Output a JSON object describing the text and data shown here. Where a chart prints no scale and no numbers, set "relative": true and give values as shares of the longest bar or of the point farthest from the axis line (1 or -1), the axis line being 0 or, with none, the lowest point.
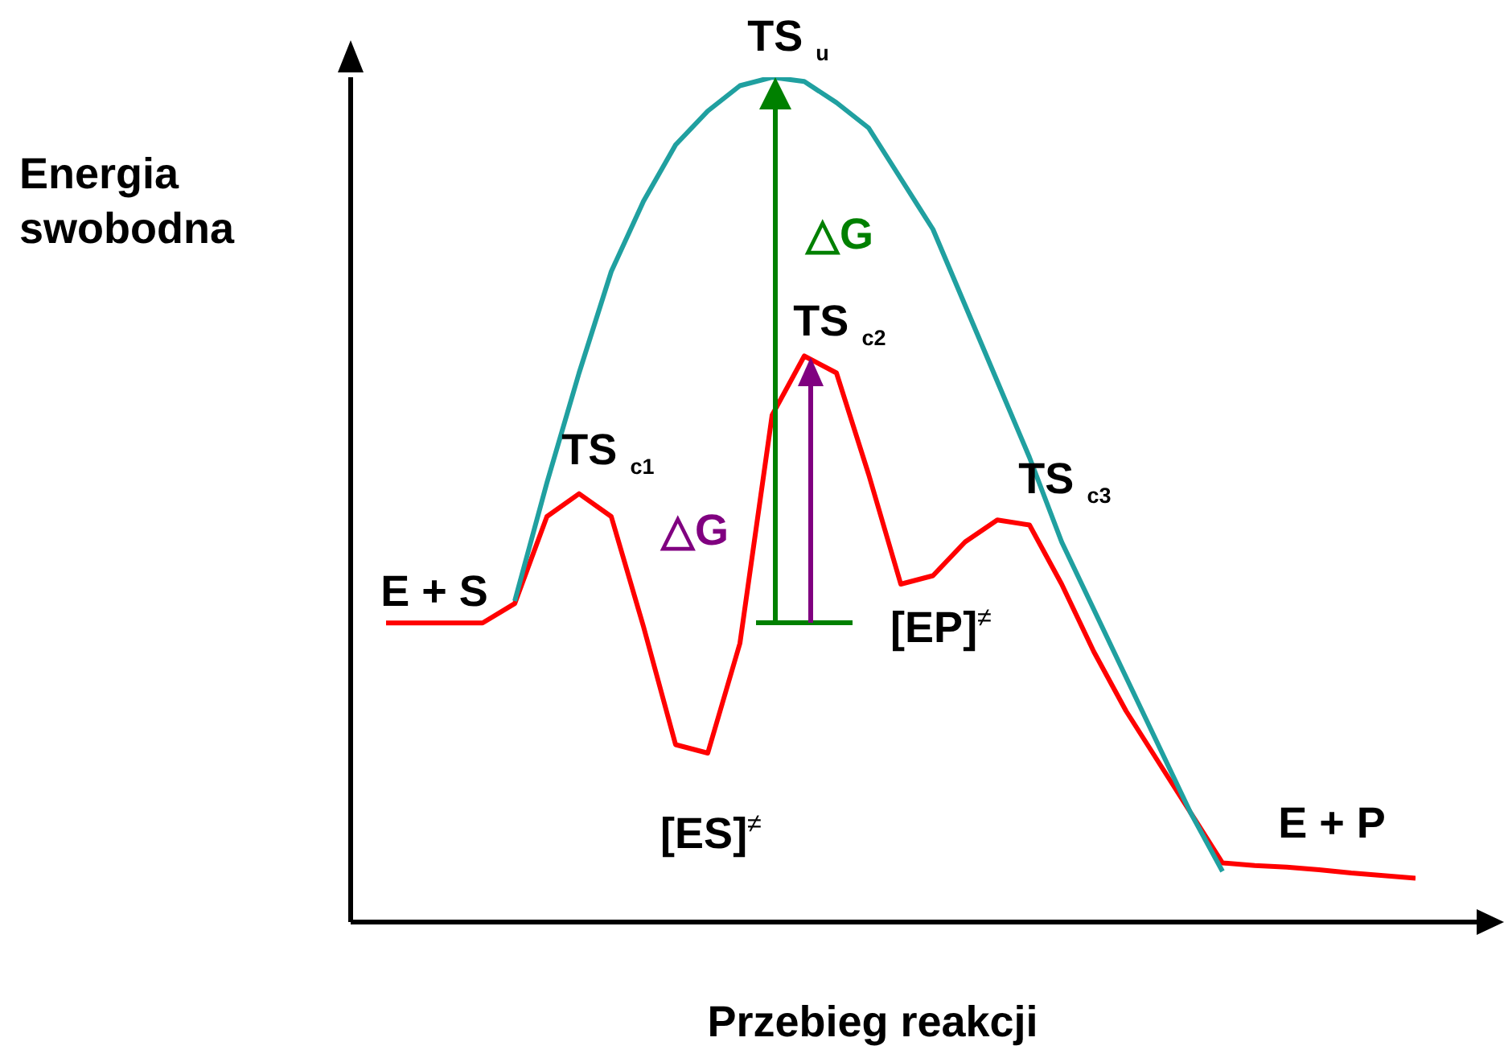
{
  "chart_data": {
    "type": "line",
    "relative": true,
    "xlabel": "Przebieg reakcji",
    "ylabel": "Energia swobodna",
    "grid": false,
    "marker": "none",
    "line_style": "solid",
    "categories": [
      null,
      null,
      null,
      null,
      null,
      null,
      null,
      null,
      null,
      null,
      null,
      null,
      null,
      null,
      null,
      null,
      null,
      null,
      null,
      null,
      null,
      null,
      null,
      null,
      null,
      null,
      null,
      null,
      null,
      null,
      null,
      null,
      null
    ],
    "series": [
      {
        "color": "#ff0000",
        "values": [
          0.354,
          0.354,
          0.354,
          0.354,
          0.377,
          0.48,
          0.507,
          0.48,
          0.35,
          0.21,
          0.2,
          0.33,
          0.6,
          0.67,
          0.65,
          0.53,
          0.4,
          0.41,
          0.45,
          0.476,
          0.47,
          0.4,
          0.32,
          0.25,
          0.19,
          0.13,
          0.07,
          0.067,
          0.065,
          0.062,
          0.058,
          0.055,
          0.052
        ]
      },
      {
        "color": "#20a0a0",
        "values": [
          null,
          null,
          null,
          null,
          0.38,
          0.52,
          0.65,
          0.77,
          0.853,
          0.92,
          0.96,
          0.99,
          1.0,
          0.995,
          0.97,
          0.94,
          0.88,
          0.82,
          0.73,
          0.64,
          0.55,
          0.45,
          0.37,
          0.29,
          0.21,
          0.13,
          0.06,
          null,
          null,
          null,
          null,
          null,
          null
        ]
      }
    ],
    "annotations": [
      "TS$_{u}$",
      "TS$_{c1}$",
      "TS$_{c2}$",
      "TS$_{c3}$",
      "E + S",
      "E + P",
      "[ES]$^{≠}$",
      "[EP]$^{≠}$",
      "△G",
      "△G"
    ]
  }
}
